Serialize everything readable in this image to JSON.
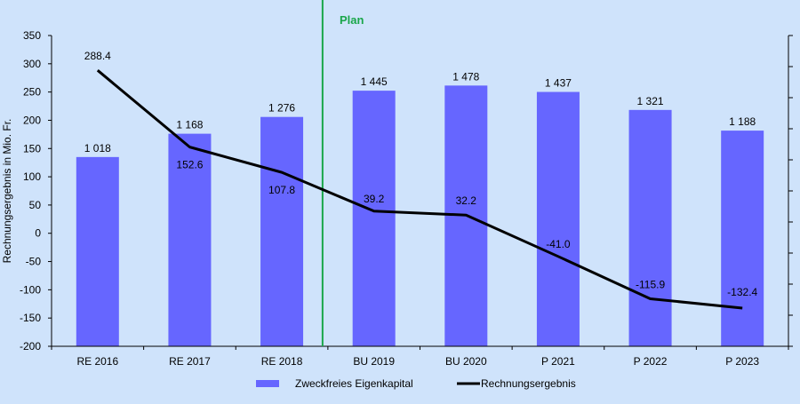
{
  "chart_data": {
    "type": "bar",
    "categories": [
      "RE 2016",
      "RE 2017",
      "RE 2018",
      "BU 2019",
      "BU 2020",
      "P 2021",
      "P 2022",
      "P 2023"
    ],
    "series": [
      {
        "name": "Zweckfreies Eigenkapital",
        "type": "bar",
        "values": [
          1018,
          1168,
          1276,
          1445,
          1478,
          1437,
          1321,
          1188
        ],
        "value_labels": [
          "1 018",
          "1 168",
          "1 276",
          "1 445",
          "1 478",
          "1 437",
          "1 321",
          "1 188"
        ],
        "axis": "secondary",
        "color": "#6666ff"
      },
      {
        "name": "Rechnungsergebnis",
        "type": "line",
        "values": [
          288.4,
          152.6,
          107.8,
          39.2,
          32.2,
          -41.0,
          -115.9,
          -132.4
        ],
        "value_labels": [
          "288.4",
          "152.6",
          "107.8",
          "39.2",
          "32.2",
          "-41.0",
          "-115.9",
          "-132.4"
        ],
        "axis": "primary",
        "color": "#000000"
      }
    ],
    "ylabel": "Rechnungsergebnis in Mio. Fr.",
    "ylim": [
      -200,
      350
    ],
    "yticks": [
      "350",
      "300",
      "250",
      "200",
      "150",
      "100",
      "50",
      "0",
      "-50",
      "-100",
      "-150",
      "-200"
    ],
    "y2lim": [
      -200,
      1800
    ],
    "annotation": "Plan",
    "annotation_color": "#1aa64a",
    "legend_position": "bottom",
    "grid": false,
    "background": "#cfe3fb"
  }
}
